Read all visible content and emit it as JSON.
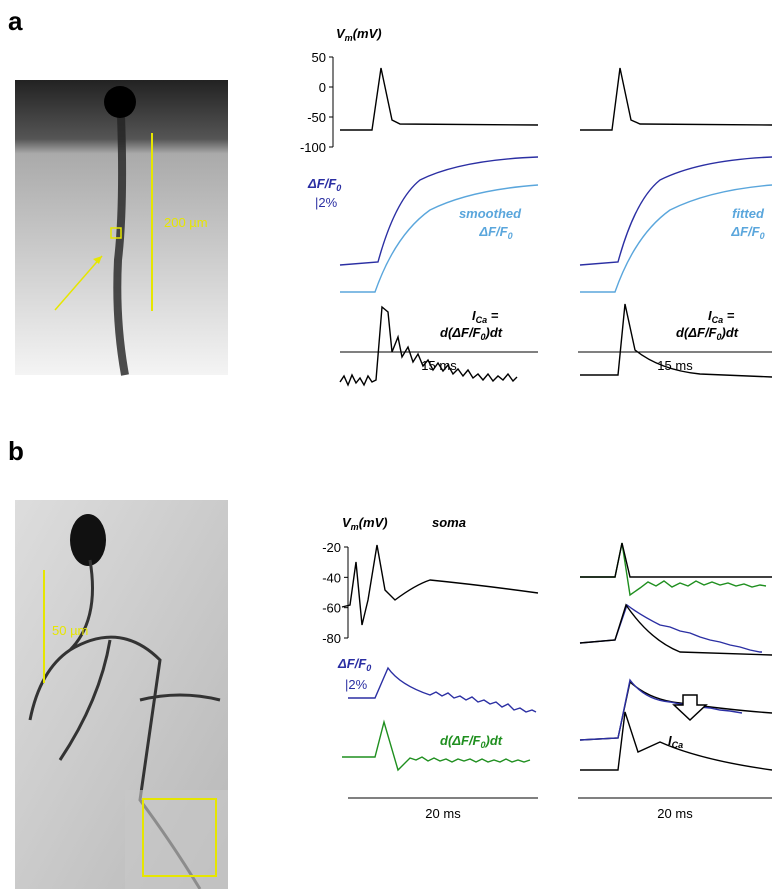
{
  "panel_a": {
    "label": "a",
    "scale_bar": "200 µm",
    "vm": [
      "V",
      "m",
      "(mV)"
    ],
    "yticks": [
      50,
      0,
      -50,
      -100
    ],
    "ylim": [
      50,
      -100
    ],
    "dff": [
      "ΔF/F",
      "0"
    ],
    "dff_scale": "|2%",
    "smoothed": [
      "smoothed",
      "ΔF/F",
      "0"
    ],
    "fitted": [
      "fitted",
      "ΔF/F",
      "0"
    ],
    "ica_left": [
      "I",
      "Ca",
      " =",
      "d(ΔF/F",
      "0",
      ")dt"
    ],
    "ica_right": [
      "I",
      "Ca",
      " =",
      "d(ΔF/F",
      "0",
      ")dt"
    ],
    "time_left": "15 ms",
    "time_right": "15 ms"
  },
  "panel_b": {
    "label": "b",
    "scale_bar": "50 µm",
    "vm": [
      "V",
      "m",
      "(mV)"
    ],
    "soma": "soma",
    "yticks": [
      -20,
      -40,
      -60,
      -80
    ],
    "ylim": [
      -20,
      -80
    ],
    "dff": [
      "ΔF/F",
      "0"
    ],
    "dff_scale": "|2%",
    "deriv": [
      "d(ΔF/F",
      "0",
      ")dt"
    ],
    "ica": [
      "I",
      "Ca"
    ],
    "time_left": "20 ms",
    "time_right": "20 ms"
  }
}
